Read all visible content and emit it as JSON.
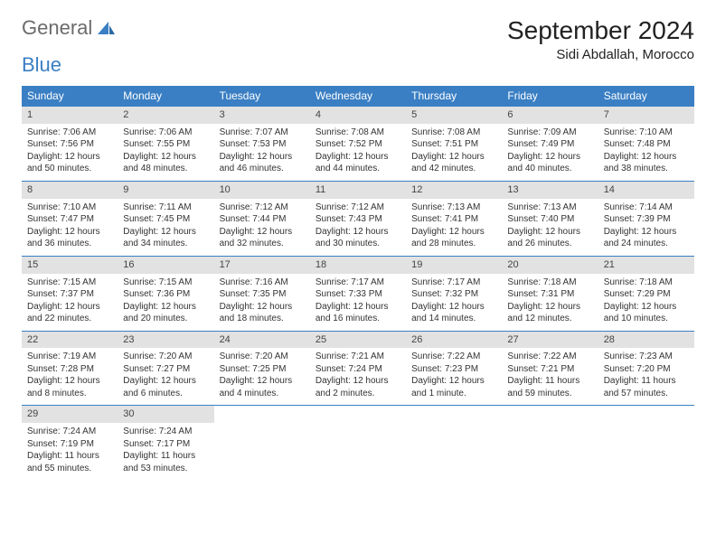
{
  "logo": {
    "text_general": "General",
    "text_blue": "Blue"
  },
  "title": "September 2024",
  "location": "Sidi Abdallah, Morocco",
  "colors": {
    "header_bg": "#3a7fc4",
    "header_fg": "#ffffff",
    "daynum_bg": "#e2e2e2",
    "border": "#3a7fc4",
    "text": "#333333"
  },
  "weekdays": [
    "Sunday",
    "Monday",
    "Tuesday",
    "Wednesday",
    "Thursday",
    "Friday",
    "Saturday"
  ],
  "weeks": [
    [
      {
        "n": "1",
        "sr": "Sunrise: 7:06 AM",
        "ss": "Sunset: 7:56 PM",
        "d1": "Daylight: 12 hours",
        "d2": "and 50 minutes."
      },
      {
        "n": "2",
        "sr": "Sunrise: 7:06 AM",
        "ss": "Sunset: 7:55 PM",
        "d1": "Daylight: 12 hours",
        "d2": "and 48 minutes."
      },
      {
        "n": "3",
        "sr": "Sunrise: 7:07 AM",
        "ss": "Sunset: 7:53 PM",
        "d1": "Daylight: 12 hours",
        "d2": "and 46 minutes."
      },
      {
        "n": "4",
        "sr": "Sunrise: 7:08 AM",
        "ss": "Sunset: 7:52 PM",
        "d1": "Daylight: 12 hours",
        "d2": "and 44 minutes."
      },
      {
        "n": "5",
        "sr": "Sunrise: 7:08 AM",
        "ss": "Sunset: 7:51 PM",
        "d1": "Daylight: 12 hours",
        "d2": "and 42 minutes."
      },
      {
        "n": "6",
        "sr": "Sunrise: 7:09 AM",
        "ss": "Sunset: 7:49 PM",
        "d1": "Daylight: 12 hours",
        "d2": "and 40 minutes."
      },
      {
        "n": "7",
        "sr": "Sunrise: 7:10 AM",
        "ss": "Sunset: 7:48 PM",
        "d1": "Daylight: 12 hours",
        "d2": "and 38 minutes."
      }
    ],
    [
      {
        "n": "8",
        "sr": "Sunrise: 7:10 AM",
        "ss": "Sunset: 7:47 PM",
        "d1": "Daylight: 12 hours",
        "d2": "and 36 minutes."
      },
      {
        "n": "9",
        "sr": "Sunrise: 7:11 AM",
        "ss": "Sunset: 7:45 PM",
        "d1": "Daylight: 12 hours",
        "d2": "and 34 minutes."
      },
      {
        "n": "10",
        "sr": "Sunrise: 7:12 AM",
        "ss": "Sunset: 7:44 PM",
        "d1": "Daylight: 12 hours",
        "d2": "and 32 minutes."
      },
      {
        "n": "11",
        "sr": "Sunrise: 7:12 AM",
        "ss": "Sunset: 7:43 PM",
        "d1": "Daylight: 12 hours",
        "d2": "and 30 minutes."
      },
      {
        "n": "12",
        "sr": "Sunrise: 7:13 AM",
        "ss": "Sunset: 7:41 PM",
        "d1": "Daylight: 12 hours",
        "d2": "and 28 minutes."
      },
      {
        "n": "13",
        "sr": "Sunrise: 7:13 AM",
        "ss": "Sunset: 7:40 PM",
        "d1": "Daylight: 12 hours",
        "d2": "and 26 minutes."
      },
      {
        "n": "14",
        "sr": "Sunrise: 7:14 AM",
        "ss": "Sunset: 7:39 PM",
        "d1": "Daylight: 12 hours",
        "d2": "and 24 minutes."
      }
    ],
    [
      {
        "n": "15",
        "sr": "Sunrise: 7:15 AM",
        "ss": "Sunset: 7:37 PM",
        "d1": "Daylight: 12 hours",
        "d2": "and 22 minutes."
      },
      {
        "n": "16",
        "sr": "Sunrise: 7:15 AM",
        "ss": "Sunset: 7:36 PM",
        "d1": "Daylight: 12 hours",
        "d2": "and 20 minutes."
      },
      {
        "n": "17",
        "sr": "Sunrise: 7:16 AM",
        "ss": "Sunset: 7:35 PM",
        "d1": "Daylight: 12 hours",
        "d2": "and 18 minutes."
      },
      {
        "n": "18",
        "sr": "Sunrise: 7:17 AM",
        "ss": "Sunset: 7:33 PM",
        "d1": "Daylight: 12 hours",
        "d2": "and 16 minutes."
      },
      {
        "n": "19",
        "sr": "Sunrise: 7:17 AM",
        "ss": "Sunset: 7:32 PM",
        "d1": "Daylight: 12 hours",
        "d2": "and 14 minutes."
      },
      {
        "n": "20",
        "sr": "Sunrise: 7:18 AM",
        "ss": "Sunset: 7:31 PM",
        "d1": "Daylight: 12 hours",
        "d2": "and 12 minutes."
      },
      {
        "n": "21",
        "sr": "Sunrise: 7:18 AM",
        "ss": "Sunset: 7:29 PM",
        "d1": "Daylight: 12 hours",
        "d2": "and 10 minutes."
      }
    ],
    [
      {
        "n": "22",
        "sr": "Sunrise: 7:19 AM",
        "ss": "Sunset: 7:28 PM",
        "d1": "Daylight: 12 hours",
        "d2": "and 8 minutes."
      },
      {
        "n": "23",
        "sr": "Sunrise: 7:20 AM",
        "ss": "Sunset: 7:27 PM",
        "d1": "Daylight: 12 hours",
        "d2": "and 6 minutes."
      },
      {
        "n": "24",
        "sr": "Sunrise: 7:20 AM",
        "ss": "Sunset: 7:25 PM",
        "d1": "Daylight: 12 hours",
        "d2": "and 4 minutes."
      },
      {
        "n": "25",
        "sr": "Sunrise: 7:21 AM",
        "ss": "Sunset: 7:24 PM",
        "d1": "Daylight: 12 hours",
        "d2": "and 2 minutes."
      },
      {
        "n": "26",
        "sr": "Sunrise: 7:22 AM",
        "ss": "Sunset: 7:23 PM",
        "d1": "Daylight: 12 hours",
        "d2": "and 1 minute."
      },
      {
        "n": "27",
        "sr": "Sunrise: 7:22 AM",
        "ss": "Sunset: 7:21 PM",
        "d1": "Daylight: 11 hours",
        "d2": "and 59 minutes."
      },
      {
        "n": "28",
        "sr": "Sunrise: 7:23 AM",
        "ss": "Sunset: 7:20 PM",
        "d1": "Daylight: 11 hours",
        "d2": "and 57 minutes."
      }
    ],
    [
      {
        "n": "29",
        "sr": "Sunrise: 7:24 AM",
        "ss": "Sunset: 7:19 PM",
        "d1": "Daylight: 11 hours",
        "d2": "and 55 minutes."
      },
      {
        "n": "30",
        "sr": "Sunrise: 7:24 AM",
        "ss": "Sunset: 7:17 PM",
        "d1": "Daylight: 11 hours",
        "d2": "and 53 minutes."
      },
      null,
      null,
      null,
      null,
      null
    ]
  ]
}
